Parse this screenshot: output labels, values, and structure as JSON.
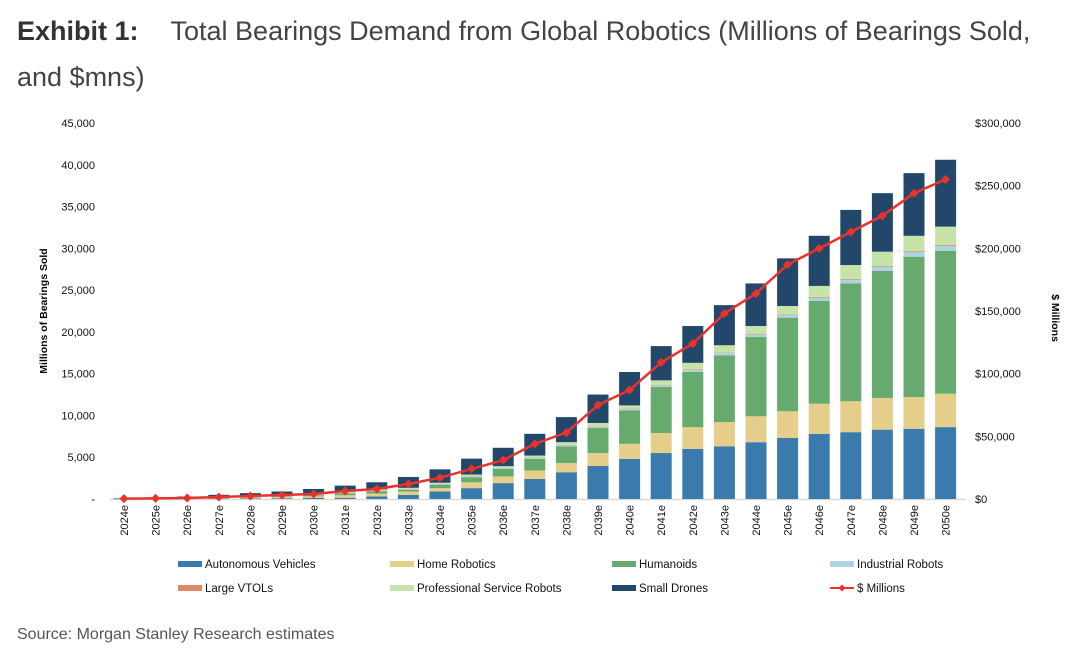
{
  "title": {
    "label": "Exhibit 1:",
    "text": "Total Bearings Demand from Global Robotics (Millions of Bearings Sold, and $mns)"
  },
  "source": "Source: Morgan Stanley Research estimates",
  "chart_data": {
    "type": "bar",
    "stacked": true,
    "categories": [
      "2024e",
      "2025e",
      "2026e",
      "2027e",
      "2028e",
      "2029e",
      "2030e",
      "2031e",
      "2032e",
      "2033e",
      "2034e",
      "2035e",
      "2036e",
      "2037e",
      "2038e",
      "2039e",
      "2040e",
      "2041e",
      "2042e",
      "2043e",
      "2044e",
      "2045e",
      "2046e",
      "2047e",
      "2048e",
      "2049e",
      "2050e"
    ],
    "ylabel": "Millions of Bearings Sold",
    "y2label": "$ Millions",
    "ylim": [
      0,
      45000
    ],
    "y2lim": [
      0,
      300000
    ],
    "yticks": [
      "-",
      "5,000",
      "10,000",
      "15,000",
      "20,000",
      "25,000",
      "30,000",
      "35,000",
      "40,000",
      "45,000"
    ],
    "y2ticks": [
      "$0",
      "$50,000",
      "$100,000",
      "$150,000",
      "$200,000",
      "$250,000",
      "$300,000"
    ],
    "grid": false,
    "legend_placement": "bottom",
    "series": [
      {
        "name": "Autonomous Vehicles",
        "color": "#3a7aad",
        "values": [
          20,
          30,
          40,
          50,
          70,
          90,
          120,
          150,
          300,
          500,
          900,
          1300,
          1900,
          2400,
          3200,
          3950,
          4800,
          5500,
          6000,
          6300,
          6800,
          7300,
          7800,
          8000,
          8300,
          8400,
          8600
        ]
      },
      {
        "name": "Home Robotics",
        "color": "#e5cd8a",
        "values": [
          10,
          20,
          30,
          60,
          100,
          150,
          200,
          300,
          350,
          400,
          400,
          700,
          800,
          1000,
          1100,
          1550,
          1800,
          2400,
          2600,
          2900,
          3100,
          3200,
          3600,
          3700,
          3800,
          3800,
          4000
        ]
      },
      {
        "name": "Humanoids",
        "color": "#66aa6e",
        "values": [
          0,
          0,
          10,
          20,
          40,
          70,
          120,
          200,
          250,
          200,
          400,
          600,
          900,
          1400,
          2000,
          3000,
          4000,
          5500,
          6600,
          8000,
          9500,
          11200,
          12300,
          14100,
          15200,
          16800,
          17100
        ]
      },
      {
        "name": "Industrial Robots",
        "color": "#a9d4e0",
        "values": [
          20,
          30,
          30,
          40,
          40,
          50,
          50,
          60,
          60,
          70,
          80,
          100,
          100,
          120,
          120,
          150,
          200,
          200,
          250,
          300,
          300,
          350,
          400,
          450,
          500,
          550,
          600
        ]
      },
      {
        "name": "Large VTOLs",
        "color": "#dd8866",
        "values": [
          0,
          0,
          0,
          0,
          0,
          0,
          10,
          10,
          10,
          20,
          20,
          30,
          30,
          30,
          40,
          50,
          50,
          50,
          50,
          60,
          70,
          70,
          80,
          90,
          100,
          100,
          120
        ]
      },
      {
        "name": "Professional Service Robots",
        "color": "#c6e3a8",
        "values": [
          10,
          20,
          30,
          50,
          70,
          90,
          120,
          150,
          180,
          150,
          150,
          200,
          200,
          250,
          340,
          400,
          350,
          550,
          800,
          840,
          930,
          980,
          1320,
          1660,
          1700,
          1850,
          2180
        ]
      },
      {
        "name": "Small Drones",
        "color": "#22476a",
        "values": [
          50,
          100,
          160,
          280,
          380,
          450,
          580,
          730,
          850,
          1300,
          1600,
          1900,
          2200,
          2600,
          3000,
          3400,
          4000,
          4100,
          4400,
          4800,
          5100,
          5700,
          6000,
          6600,
          7000,
          7500,
          8000
        ]
      }
    ],
    "line_series": {
      "name": "$ Millions",
      "color": "#e8332a",
      "axis": "right",
      "marker": "diamond",
      "values": [
        300,
        500,
        800,
        1600,
        2400,
        3200,
        4000,
        6400,
        8000,
        12000,
        17000,
        24000,
        31000,
        44000,
        53000,
        75000,
        87000,
        109000,
        124000,
        148000,
        164000,
        187000,
        200000,
        213000,
        226000,
        244000,
        255000
      ]
    }
  }
}
